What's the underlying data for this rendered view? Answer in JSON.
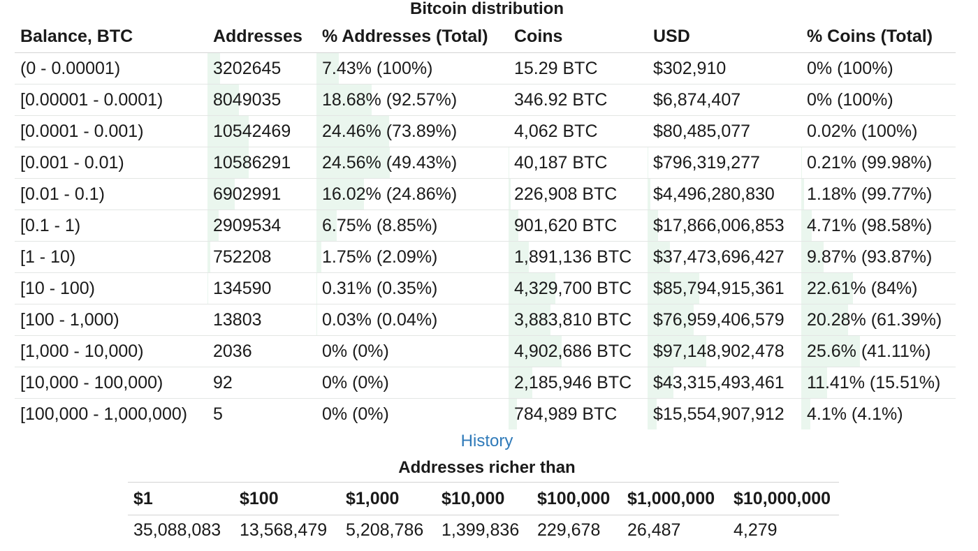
{
  "title": "Bitcoin distribution",
  "distribution": {
    "headers": [
      "Balance, BTC",
      "Addresses",
      "% Addresses (Total)",
      "Coins",
      "USD",
      "% Coins (Total)"
    ],
    "rows": [
      {
        "balance": "(0 - 0.00001)",
        "addresses": "3202645",
        "pct_addresses": "7.43% (100%)",
        "coins": "15.29 BTC",
        "usd": "$302,910",
        "pct_coins": "0% (100%)"
      },
      {
        "balance": "[0.00001 - 0.0001)",
        "addresses": "8049035",
        "pct_addresses": "18.68% (92.57%)",
        "coins": "346.92 BTC",
        "usd": "$6,874,407",
        "pct_coins": "0% (100%)"
      },
      {
        "balance": "[0.0001 - 0.001)",
        "addresses": "10542469",
        "pct_addresses": "24.46% (73.89%)",
        "coins": "4,062 BTC",
        "usd": "$80,485,077",
        "pct_coins": "0.02% (100%)"
      },
      {
        "balance": "[0.001 - 0.01)",
        "addresses": "10586291",
        "pct_addresses": "24.56% (49.43%)",
        "coins": "40,187 BTC",
        "usd": "$796,319,277",
        "pct_coins": "0.21% (99.98%)"
      },
      {
        "balance": "[0.01 - 0.1)",
        "addresses": "6902991",
        "pct_addresses": "16.02% (24.86%)",
        "coins": "226,908 BTC",
        "usd": "$4,496,280,830",
        "pct_coins": "1.18% (99.77%)"
      },
      {
        "balance": "[0.1 - 1)",
        "addresses": "2909534",
        "pct_addresses": "6.75% (8.85%)",
        "coins": "901,620 BTC",
        "usd": "$17,866,006,853",
        "pct_coins": "4.71% (98.58%)"
      },
      {
        "balance": "[1 - 10)",
        "addresses": "752208",
        "pct_addresses": "1.75% (2.09%)",
        "coins": "1,891,136 BTC",
        "usd": "$37,473,696,427",
        "pct_coins": "9.87% (93.87%)"
      },
      {
        "balance": "[10 - 100)",
        "addresses": "134590",
        "pct_addresses": "0.31% (0.35%)",
        "coins": "4,329,700 BTC",
        "usd": "$85,794,915,361",
        "pct_coins": "22.61% (84%)"
      },
      {
        "balance": "[100 - 1,000)",
        "addresses": "13803",
        "pct_addresses": "0.03% (0.04%)",
        "coins": "3,883,810 BTC",
        "usd": "$76,959,406,579",
        "pct_coins": "20.28% (61.39%)"
      },
      {
        "balance": "[1,000 - 10,000)",
        "addresses": "2036",
        "pct_addresses": "0% (0%)",
        "coins": "4,902,686 BTC",
        "usd": "$97,148,902,478",
        "pct_coins": "25.6% (41.11%)"
      },
      {
        "balance": "[10,000 - 100,000)",
        "addresses": "92",
        "pct_addresses": "0% (0%)",
        "coins": "2,185,946 BTC",
        "usd": "$43,315,493,461",
        "pct_coins": "11.41% (15.51%)"
      },
      {
        "balance": "[100,000 - 1,000,000)",
        "addresses": "5",
        "pct_addresses": "0% (0%)",
        "coins": "784,989 BTC",
        "usd": "$15,554,907,912",
        "pct_coins": "4.1% (4.1%)"
      }
    ]
  },
  "history_link": "History",
  "richer": {
    "title": "Addresses richer than",
    "headers": [
      "$1",
      "$100",
      "$1,000",
      "$10,000",
      "$100,000",
      "$1,000,000",
      "$10,000,000"
    ],
    "values": [
      "35,088,083",
      "13,568,479",
      "5,208,786",
      "1,399,836",
      "229,678",
      "26,487",
      "4,279"
    ]
  },
  "colors": {
    "bar_fill": "#eaf6ee",
    "link": "#2f7ab9",
    "border": "#d3d3d3"
  }
}
